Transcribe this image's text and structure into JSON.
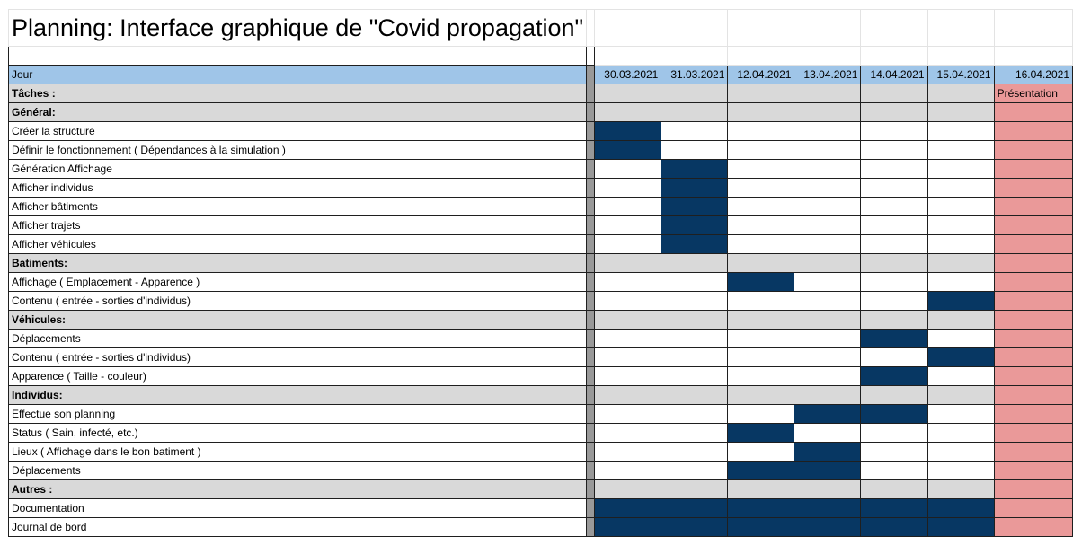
{
  "title": "Planning: Interface graphique de \"Covid propagation\"",
  "header": {
    "label": "Jour",
    "dates": [
      "30.03.2021",
      "31.03.2021",
      "12.04.2021",
      "13.04.2021",
      "14.04.2021",
      "15.04.2021",
      "16.04.2021"
    ]
  },
  "colors": {
    "header": "#9fc5e8",
    "section": "#d9d9d9",
    "separator": "#999999",
    "task_bar": "#073763",
    "presentation": "#ea9999"
  },
  "presentation_label": "Présentation",
  "rows": [
    {
      "type": "section",
      "label": "Tâches :",
      "days": []
    },
    {
      "type": "section",
      "label": "Général:",
      "days": []
    },
    {
      "type": "task",
      "label": "Créer la structure",
      "days": [
        0
      ]
    },
    {
      "type": "task",
      "label": "Définir le fonctionnement ( Dépendances à la simulation )",
      "days": [
        0
      ]
    },
    {
      "type": "task",
      "label": "Génération Affichage",
      "days": [
        1
      ]
    },
    {
      "type": "task",
      "label": "Afficher individus",
      "days": [
        1
      ]
    },
    {
      "type": "task",
      "label": "Afficher bâtiments",
      "days": [
        1
      ]
    },
    {
      "type": "task",
      "label": "Afficher trajets",
      "days": [
        1
      ]
    },
    {
      "type": "task",
      "label": "Afficher véhicules",
      "days": [
        1
      ]
    },
    {
      "type": "section",
      "label": "Batiments:",
      "days": []
    },
    {
      "type": "task",
      "label": "Affichage ( Emplacement - Apparence )",
      "days": [
        2
      ]
    },
    {
      "type": "task",
      "label": "Contenu ( entrée - sorties d'individus)",
      "days": [
        5
      ]
    },
    {
      "type": "section",
      "label": "Véhicules:",
      "days": []
    },
    {
      "type": "task",
      "label": "Déplacements",
      "days": [
        4
      ]
    },
    {
      "type": "task",
      "label": "Contenu ( entrée - sorties d'individus)",
      "days": [
        5
      ]
    },
    {
      "type": "task",
      "label": "Apparence ( Taille - couleur)",
      "days": [
        4
      ]
    },
    {
      "type": "section",
      "label": "Individus:",
      "days": []
    },
    {
      "type": "task",
      "label": "Effectue son planning",
      "days": [
        3,
        4
      ]
    },
    {
      "type": "task",
      "label": "Status ( Sain, infecté, etc.)",
      "days": [
        2
      ]
    },
    {
      "type": "task",
      "label": "Lieux ( Affichage dans le bon batiment )",
      "days": [
        3
      ]
    },
    {
      "type": "task",
      "label": "Déplacements",
      "days": [
        2,
        3
      ]
    },
    {
      "type": "section",
      "label": "Autres :",
      "days": []
    },
    {
      "type": "task",
      "label": "Documentation",
      "days": [
        0,
        1,
        2,
        3,
        4,
        5
      ]
    },
    {
      "type": "task",
      "label": "Journal de bord",
      "days": [
        0,
        1,
        2,
        3,
        4,
        5
      ]
    }
  ]
}
